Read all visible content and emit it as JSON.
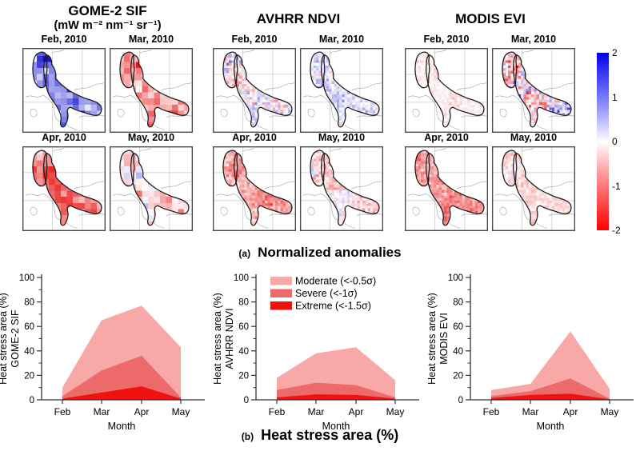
{
  "captions": {
    "a_label": "(a)",
    "a_title": "Normalized anomalies",
    "b_label": "(b)",
    "b_title": "Heat stress area (%)"
  },
  "maps": {
    "groups": [
      {
        "id": "gome2",
        "title": "GOME-2 SIF",
        "subtitle": "(mW m⁻² nm⁻¹ sr⁻¹)",
        "panels": [
          {
            "label": "Feb, 2010",
            "anomaly_mean": 0.95,
            "anomaly_spread": 0.75,
            "resolution": "coarse"
          },
          {
            "label": "Mar, 2010",
            "anomaly_mean": -0.75,
            "anomaly_spread": 0.65,
            "resolution": "coarse"
          },
          {
            "label": "Apr, 2010",
            "anomaly_mean": -1.15,
            "anomaly_spread": 0.55,
            "resolution": "coarse"
          },
          {
            "label": "May, 2010",
            "anomaly_mean": -0.35,
            "anomaly_spread": 0.6,
            "resolution": "coarse"
          }
        ]
      },
      {
        "id": "avhrr",
        "title": "AVHRR NDVI",
        "subtitle": "",
        "panels": [
          {
            "label": "Feb, 2010",
            "anomaly_mean": 0.1,
            "anomaly_spread": 0.8,
            "resolution": "fine"
          },
          {
            "label": "Mar, 2010",
            "anomaly_mean": 0.1,
            "anomaly_spread": 0.55,
            "resolution": "fine"
          },
          {
            "label": "Apr, 2010",
            "anomaly_mean": -0.7,
            "anomaly_spread": 0.5,
            "resolution": "fine"
          },
          {
            "label": "May, 2010",
            "anomaly_mean": -0.25,
            "anomaly_spread": 0.5,
            "resolution": "fine"
          }
        ]
      },
      {
        "id": "modis",
        "title": "MODIS EVI",
        "subtitle": "",
        "panels": [
          {
            "label": "Feb, 2010",
            "anomaly_mean": -0.12,
            "anomaly_spread": 0.25,
            "resolution": "fine"
          },
          {
            "label": "Mar, 2010",
            "anomaly_mean": -0.15,
            "anomaly_spread": 1.15,
            "resolution": "fine"
          },
          {
            "label": "Apr, 2010",
            "anomaly_mean": -0.9,
            "anomaly_spread": 0.45,
            "resolution": "fine"
          },
          {
            "label": "May, 2010",
            "anomaly_mean": -0.3,
            "anomaly_spread": 0.35,
            "resolution": "fine"
          }
        ]
      }
    ],
    "colorbar": {
      "max": 2,
      "min": -2,
      "ticks": [
        "2",
        "1",
        "0",
        "-1",
        "-2"
      ],
      "positive_color": "#0000EE",
      "zero_color": "#FFFFFF",
      "negative_color": "#FF0000"
    }
  },
  "legend": {
    "location": "middle chart, top-left",
    "entries": [
      {
        "label": "Moderate (<-0.5σ)",
        "color": "#F9A8A8"
      },
      {
        "label": "Severe (<-1σ)",
        "color": "#EC6A6A"
      },
      {
        "label": "Extreme (<-1.5σ)",
        "color": "#F01111"
      }
    ]
  },
  "chart_data": [
    {
      "type": "area",
      "title": "GOME-2 SIF",
      "ylabel": "Heat stress area (%)",
      "ylabel2": "GOME-2 SIF",
      "xlabel": "Month",
      "categories": [
        "Feb",
        "Mar",
        "Apr",
        "May"
      ],
      "ylim": [
        0,
        100
      ],
      "yticks": [
        0,
        20,
        40,
        60,
        80,
        100
      ],
      "grid": false,
      "show_legend": false,
      "series": [
        {
          "name": "Moderate (<-0.5σ)",
          "values": [
            10,
            65,
            77,
            43
          ],
          "color": "#F9A8A8"
        },
        {
          "name": "Severe (<-1σ)",
          "values": [
            3,
            24,
            36,
            2
          ],
          "color": "#EC6A6A"
        },
        {
          "name": "Extreme (<-1.5σ)",
          "values": [
            1,
            6,
            11,
            1
          ],
          "color": "#F01111"
        }
      ]
    },
    {
      "type": "area",
      "title": "AVHRR NDVI",
      "ylabel": "Heat stress area (%)",
      "ylabel2": "AVHRR NDVI",
      "xlabel": "Month",
      "categories": [
        "Feb",
        "Mar",
        "Apr",
        "May"
      ],
      "ylim": [
        0,
        100
      ],
      "yticks": [
        0,
        20,
        40,
        60,
        80,
        100
      ],
      "grid": false,
      "show_legend": true,
      "series": [
        {
          "name": "Moderate (<-0.5σ)",
          "values": [
            18,
            38,
            43,
            16
          ],
          "color": "#F9A8A8"
        },
        {
          "name": "Severe (<-1σ)",
          "values": [
            8,
            14,
            12,
            2
          ],
          "color": "#EC6A6A"
        },
        {
          "name": "Extreme (<-1.5σ)",
          "values": [
            2,
            4.5,
            4,
            1
          ],
          "color": "#F01111"
        }
      ]
    },
    {
      "type": "area",
      "title": "MODIS EVI",
      "ylabel": "Heat stress area (%)",
      "ylabel2": "MODIS EVI",
      "xlabel": "Month",
      "categories": [
        "Feb",
        "Mar",
        "Apr",
        "May"
      ],
      "ylim": [
        0,
        100
      ],
      "yticks": [
        0,
        20,
        40,
        60,
        80,
        100
      ],
      "grid": false,
      "show_legend": false,
      "series": [
        {
          "name": "Moderate (<-0.5σ)",
          "values": [
            8,
            13,
            56,
            9
          ],
          "color": "#F9A8A8"
        },
        {
          "name": "Severe (<-1σ)",
          "values": [
            3,
            7,
            17.5,
            1
          ],
          "color": "#EC6A6A"
        },
        {
          "name": "Extreme (<-1.5σ)",
          "values": [
            1.5,
            4,
            5,
            0.5
          ],
          "color": "#F01111"
        }
      ]
    }
  ]
}
